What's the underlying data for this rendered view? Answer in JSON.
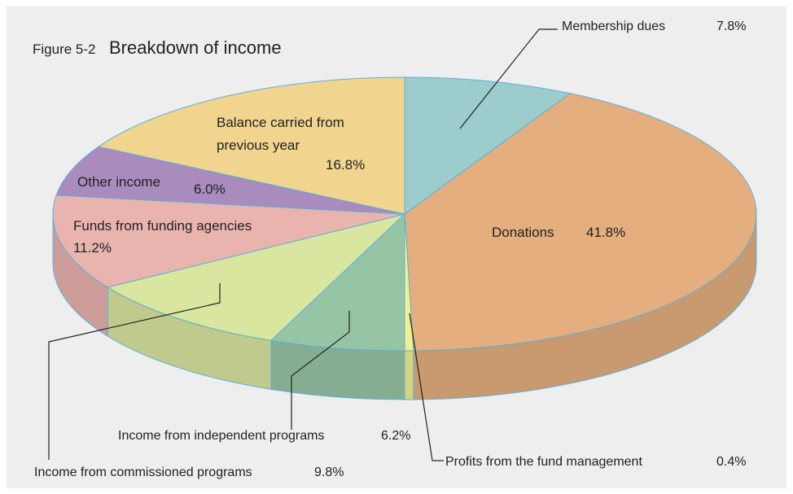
{
  "chart_data": {
    "type": "pie3d",
    "figure_label": "Figure 5-2",
    "title": "Breakdown of income",
    "categories": [
      "Membership dues",
      "Donations",
      "Profits from the fund management",
      "Income from independent programs",
      "Income from commissioned programs",
      "Funds from funding agencies",
      "Other income",
      "Balance carried from previous year"
    ],
    "values": [
      7.8,
      41.8,
      0.4,
      6.2,
      9.8,
      11.2,
      6.0,
      16.8
    ],
    "value_labels": [
      "7.8%",
      "41.8%",
      "0.4%",
      "6.2%",
      "9.8%",
      "11.2%",
      "6.0%",
      "16.8%"
    ],
    "colors": [
      "#9ccccb",
      "#e4ae7e",
      "#f2f08e",
      "#96c5a6",
      "#d9e69f",
      "#e9b4ae",
      "#a98bbd",
      "#f1d58e"
    ]
  }
}
